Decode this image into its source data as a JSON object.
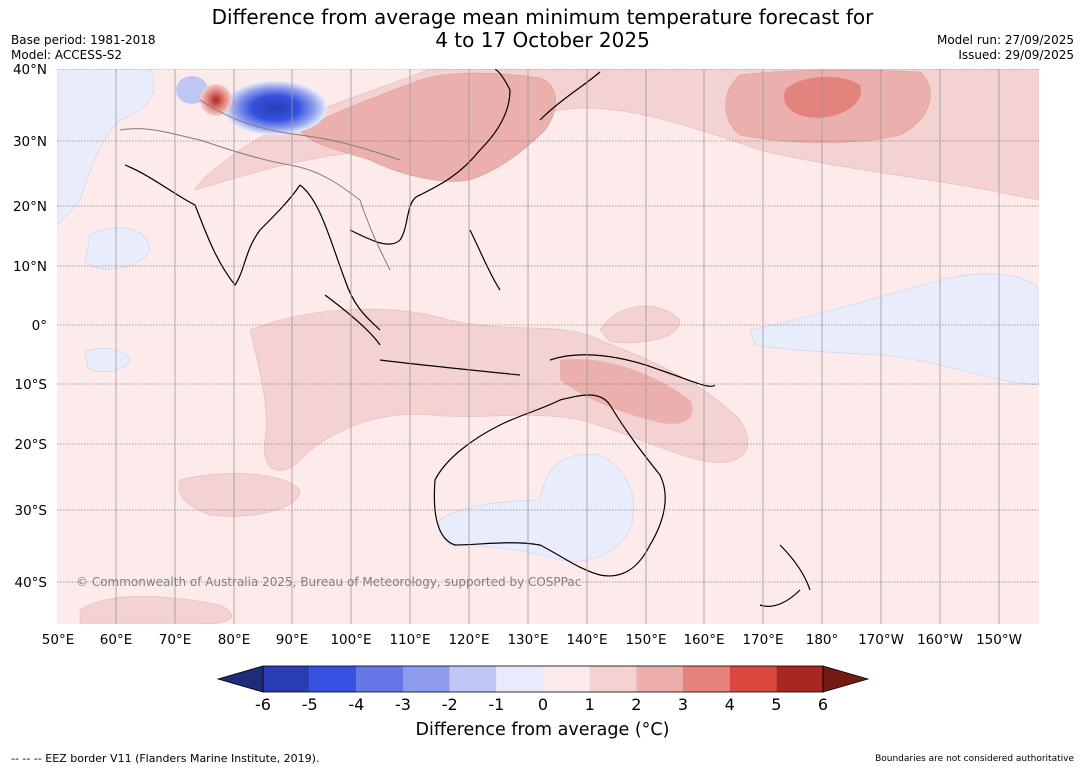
{
  "title": {
    "line1": "Difference from average mean minimum temperature forecast for",
    "line2": "4 to 17 October 2025"
  },
  "meta": {
    "base_period": "Base period: 1981-2018",
    "model": "Model: ACCESS-S2",
    "model_run": "Model run: 27/09/2025",
    "issued": "Issued: 29/09/2025"
  },
  "map": {
    "lat_ticks": [
      "40°N",
      "30°N",
      "20°N",
      "10°N",
      "0°",
      "10°S",
      "20°S",
      "30°S",
      "40°S"
    ],
    "lon_ticks": [
      "50°E",
      "60°E",
      "70°E",
      "80°E",
      "90°E",
      "100°E",
      "110°E",
      "120°E",
      "130°E",
      "140°E",
      "150°E",
      "160°E",
      "170°E",
      "180°",
      "170°W",
      "160°W",
      "150°W"
    ],
    "copyright": "© Commonwealth of Australia 2025, Bureau of Meteorology, supported by COSPPac",
    "colors": {
      "ocean_base": "#fcebea",
      "light_red": "#f4d2d1",
      "mid_red": "#ebb0ad",
      "strong_red": "#e3837d",
      "light_blue": "#e9ecfb",
      "blue": "#bfc7f2",
      "deep_blue": "#3451e0"
    }
  },
  "colorbar": {
    "ticks": [
      "-6",
      "-5",
      "-4",
      "-3",
      "-2",
      "-1",
      "0",
      "1",
      "2",
      "3",
      "4",
      "5",
      "6"
    ],
    "colors": [
      "#1f2c7a",
      "#2a3db3",
      "#3451e0",
      "#6477e4",
      "#8c9bec",
      "#bfc6f4",
      "#e8ebfb",
      "#fbeae9",
      "#f4d2d1",
      "#ecaeaa",
      "#e6817b",
      "#d9473f",
      "#a82720",
      "#741a14"
    ],
    "label": "Difference from average (°C)"
  },
  "footer": {
    "eez": "--  --  -- EEZ border V11 (Flanders Marine Institute, 2019).",
    "boundaries": "Boundaries are not considered authoritative"
  }
}
